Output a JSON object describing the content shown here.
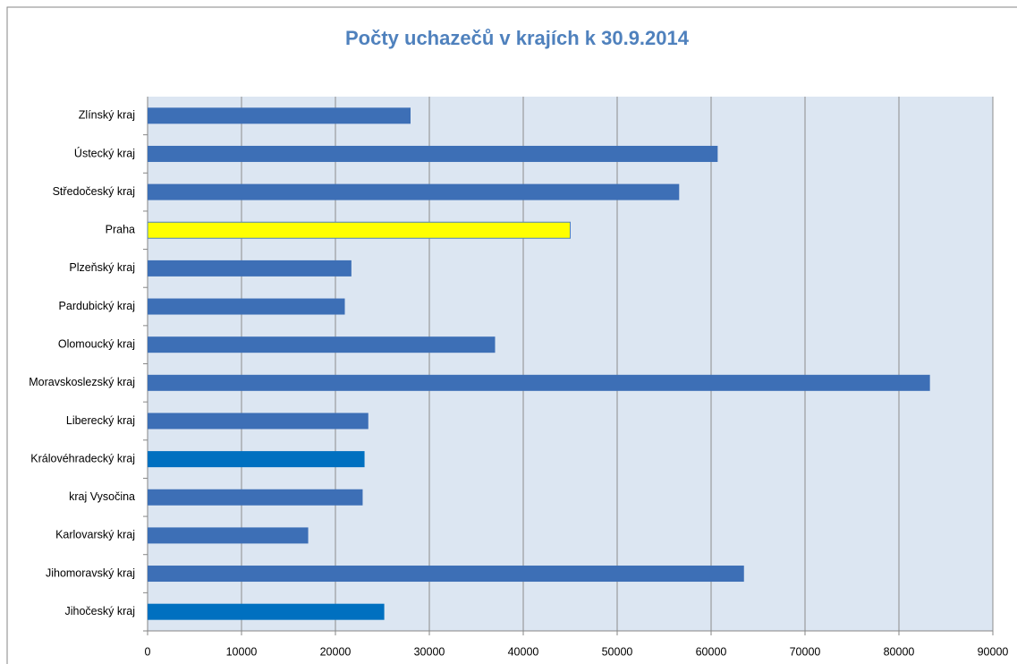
{
  "chart_data": {
    "type": "bar",
    "orientation": "horizontal",
    "title": "Počty uchazečů v krajích k 30.9.2014",
    "categories": [
      "Jihočeský kraj",
      "Jihomoravský kraj",
      "Karlovarský kraj",
      "kraj Vysočina",
      "Královéhradecký kraj",
      "Liberecký kraj",
      "Moravskoslezský kraj",
      "Olomoucký kraj",
      "Pardubický kraj",
      "Plzeňský kraj",
      "Praha",
      "Středočeský kraj",
      "Ústecký kraj",
      "Zlínský kraj"
    ],
    "values": [
      25200,
      63500,
      17100,
      22900,
      23100,
      23500,
      83300,
      37000,
      21000,
      21700,
      45000,
      56600,
      60700,
      28000
    ],
    "colors": [
      "#0070c0",
      "#3d6fb6",
      "#3d6fb6",
      "#3d6fb6",
      "#0070c0",
      "#3d6fb6",
      "#3d6fb6",
      "#3d6fb6",
      "#3d6fb6",
      "#3d6fb6",
      "#ffff00",
      "#3d6fb6",
      "#3d6fb6",
      "#3d6fb6"
    ],
    "xlim": [
      0,
      90000
    ],
    "xticks": [
      0,
      10000,
      20000,
      30000,
      40000,
      50000,
      60000,
      70000,
      80000,
      90000
    ],
    "grid": true
  }
}
